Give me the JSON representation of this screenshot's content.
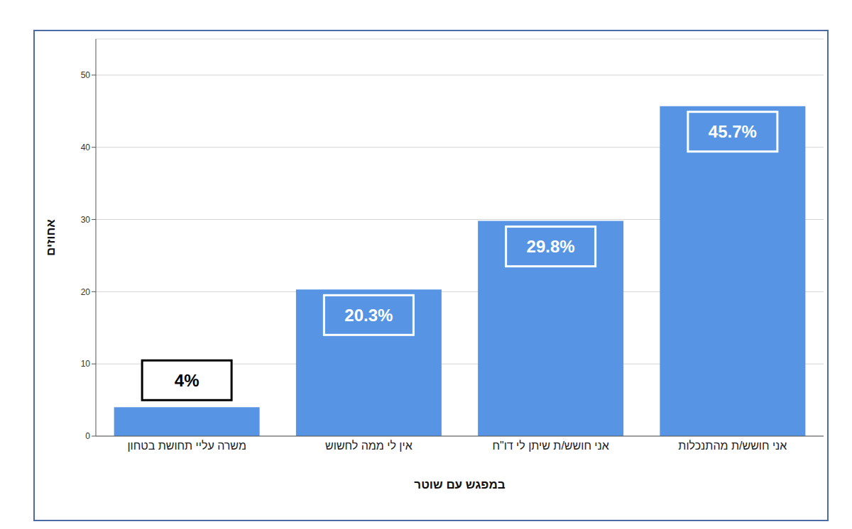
{
  "chart_data": {
    "type": "bar",
    "categories": [
      "משרה עליי תחושת בטחון",
      "אין לי ממה לחשוש",
      "אני חושש/ת שיתן לי דו\"ח",
      "אני חושש/ת מהתנכלות"
    ],
    "values": [
      4,
      20.3,
      29.8,
      45.7
    ],
    "value_labels": [
      "4%",
      "20.3%",
      "29.8%",
      "45.7%"
    ],
    "color": "#5795e4",
    "ylim": [
      0,
      55
    ],
    "yticks": [
      0,
      10,
      20,
      30,
      40,
      50
    ],
    "grid": true,
    "data_labels": true,
    "x_label": "במפגש עם שוטר",
    "y_label": "אחוזים"
  }
}
